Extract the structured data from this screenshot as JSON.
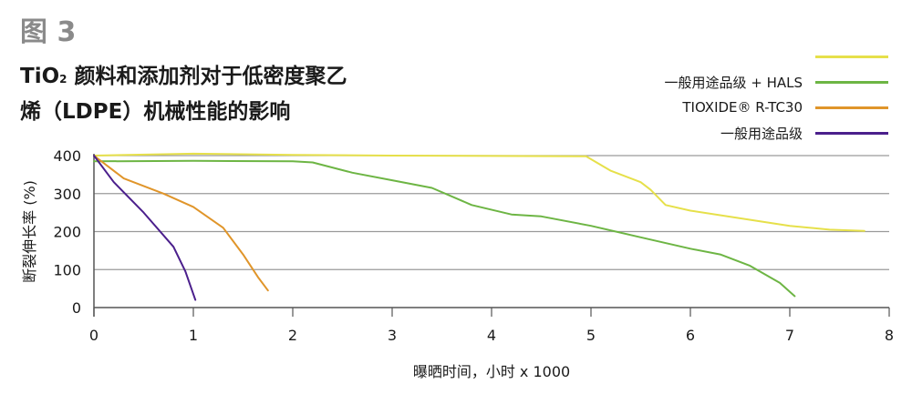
{
  "figure": {
    "label": "图 3",
    "title_part1": "TiO",
    "title_sub": "2",
    "title_part2": " 颜料和添加剂对于低密度聚乙",
    "title_line2": "烯（LDPE）机械性能的影响"
  },
  "legend": [
    {
      "label": "",
      "color": "#e6e04a"
    },
    {
      "label": "一般用途品级 + HALS",
      "color": "#6db544"
    },
    {
      "label": "TIOXIDE® R-TC30",
      "color": "#e0952a"
    },
    {
      "label": "一般用途品级",
      "color": "#4b1f8c"
    }
  ],
  "chart_data": {
    "type": "line",
    "xlabel": "曝晒时间，小时 x 1000",
    "ylabel": "断裂伸长率 (%)",
    "xlim": [
      0,
      8
    ],
    "ylim": [
      0,
      400
    ],
    "x_ticks": [
      "0",
      "1",
      "2",
      "3",
      "4",
      "5",
      "6",
      "7",
      "8"
    ],
    "y_ticks": [
      "0",
      "100",
      "200",
      "300",
      "400"
    ],
    "grid": "horizontal",
    "series": [
      {
        "color": "#e6e04a",
        "points": [
          [
            0,
            400
          ],
          [
            1,
            405
          ],
          [
            2,
            402
          ],
          [
            3,
            400
          ],
          [
            4,
            399
          ],
          [
            4.95,
            398
          ],
          [
            5.2,
            360
          ],
          [
            5.5,
            330
          ],
          [
            5.6,
            310
          ],
          [
            5.75,
            270
          ],
          [
            6,
            255
          ],
          [
            6.5,
            235
          ],
          [
            7,
            215
          ],
          [
            7.4,
            205
          ],
          [
            7.75,
            202
          ]
        ]
      },
      {
        "color": "#6db544",
        "points": [
          [
            0,
            385
          ],
          [
            1,
            386
          ],
          [
            2,
            385
          ],
          [
            2.2,
            382
          ],
          [
            2.6,
            355
          ],
          [
            3,
            335
          ],
          [
            3.4,
            315
          ],
          [
            3.8,
            270
          ],
          [
            4.2,
            245
          ],
          [
            4.5,
            240
          ],
          [
            5,
            215
          ],
          [
            5.5,
            185
          ],
          [
            6,
            155
          ],
          [
            6.3,
            140
          ],
          [
            6.6,
            110
          ],
          [
            6.9,
            65
          ],
          [
            7.05,
            30
          ]
        ]
      },
      {
        "color": "#e0952a",
        "points": [
          [
            0,
            400
          ],
          [
            0.3,
            340
          ],
          [
            0.7,
            300
          ],
          [
            1,
            265
          ],
          [
            1.3,
            210
          ],
          [
            1.5,
            140
          ],
          [
            1.65,
            80
          ],
          [
            1.75,
            45
          ]
        ]
      },
      {
        "color": "#4b1f8c",
        "points": [
          [
            0,
            400
          ],
          [
            0.2,
            330
          ],
          [
            0.5,
            250
          ],
          [
            0.8,
            160
          ],
          [
            0.92,
            95
          ],
          [
            1.02,
            20
          ]
        ]
      }
    ]
  }
}
